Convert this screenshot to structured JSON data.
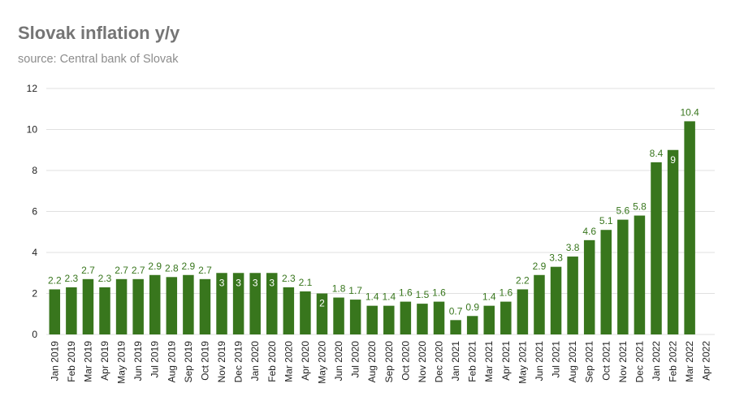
{
  "title": "Slovak inflation y/y",
  "subtitle": "source: Central bank of Slovak",
  "colors": {
    "bar": "#38761d",
    "label_outside": "#38761d",
    "label_inside": "#ffffff",
    "grid": "#e0e0e0",
    "title": "#757575",
    "subtitle": "#8c8c8c"
  },
  "chart_data": {
    "type": "bar",
    "title": "Slovak inflation y/y",
    "subtitle": "source: Central bank of Slovak",
    "xlabel": "",
    "ylabel": "",
    "ylim": [
      0,
      12
    ],
    "yticks": [
      0,
      2,
      4,
      6,
      8,
      10,
      12
    ],
    "grid": true,
    "categories": [
      "Jan 2019",
      "Feb 2019",
      "Mar 2019",
      "Apr 2019",
      "May 2019",
      "Jun 2019",
      "Jul 2019",
      "Aug 2019",
      "Sep 2019",
      "Oct 2019",
      "Nov 2019",
      "Dec 2019",
      "Jan 2020",
      "Feb 2020",
      "Mar 2020",
      "Apr 2020",
      "May 2020",
      "Jun 2020",
      "Jul 2020",
      "Aug 2020",
      "Sep 2020",
      "Oct 2020",
      "Nov 2020",
      "Dec 2020",
      "Jan 2021",
      "Feb 2021",
      "Mar 2021",
      "Apr 2021",
      "May 2021",
      "Jun 2021",
      "Jul 2021",
      "Aug 2021",
      "Sep 2021",
      "Oct 2021",
      "Nov 2021",
      "Dec 2021",
      "Jan 2022",
      "Feb 2022",
      "Mar 2022",
      "Apr 2022"
    ],
    "values": [
      2.2,
      2.3,
      2.7,
      2.3,
      2.7,
      2.7,
      2.9,
      2.8,
      2.9,
      2.7,
      3,
      3,
      3,
      3,
      2.3,
      2.1,
      2,
      1.8,
      1.7,
      1.4,
      1.4,
      1.6,
      1.5,
      1.6,
      0.7,
      0.9,
      1.4,
      1.6,
      2.2,
      2.9,
      3.3,
      3.8,
      4.6,
      5.1,
      5.6,
      5.8,
      8.4,
      9,
      10.4,
      null
    ],
    "labels": [
      "2.2",
      "2.3",
      "2.7",
      "2.3",
      "2.7",
      "2.7",
      "2.9",
      "2.8",
      "2.9",
      "2.7",
      "3",
      "3",
      "3",
      "3",
      "2.3",
      "2.1",
      "2",
      "1.8",
      "1.7",
      "1.4",
      "1.4",
      "1.6",
      "1.5",
      "1.6",
      "0.7",
      "0.9",
      "1.4",
      "1.6",
      "2.2",
      "2.9",
      "3.3",
      "3.8",
      "4.6",
      "5.1",
      "5.6",
      "5.8",
      "8.4",
      "9",
      "10.4",
      ""
    ],
    "inside_labels": [
      false,
      false,
      false,
      false,
      false,
      false,
      false,
      false,
      false,
      false,
      true,
      true,
      true,
      true,
      false,
      false,
      true,
      false,
      false,
      false,
      false,
      false,
      false,
      false,
      false,
      false,
      false,
      false,
      false,
      false,
      false,
      false,
      false,
      false,
      false,
      false,
      false,
      true,
      false,
      false
    ]
  }
}
